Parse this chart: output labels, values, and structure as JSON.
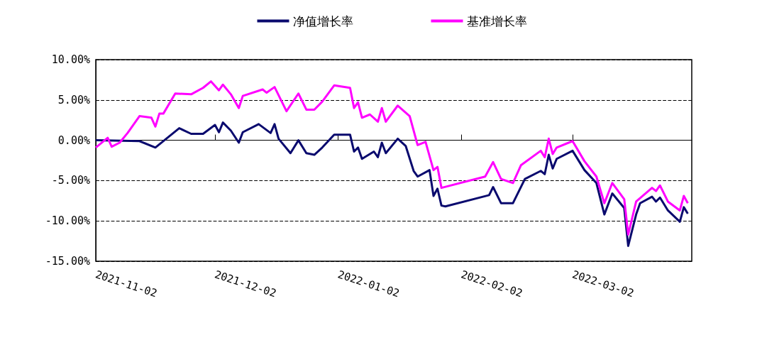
{
  "chart_data": {
    "type": "line",
    "legend": "top",
    "grid": "y",
    "xlim": [
      "2021-11-02",
      "2022-04-01"
    ],
    "xticks": [
      "2021-11-02",
      "2021-12-02",
      "2022-01-02",
      "2022-02-02",
      "2022-03-02"
    ],
    "ylim": [
      -15,
      10
    ],
    "yticks": [
      {
        "value": -15,
        "label": "-15.00%"
      },
      {
        "value": -10,
        "label": "-10.00%"
      },
      {
        "value": -5,
        "label": "-5.00%"
      },
      {
        "value": 0,
        "label": "0.00%"
      },
      {
        "value": 5,
        "label": "5.00%"
      },
      {
        "value": 10,
        "label": "10.00%"
      }
    ],
    "series": [
      {
        "name": "净值增长率",
        "color": "#0a0a6e",
        "x": [
          "2021-11-02",
          "2021-11-13",
          "2021-11-17",
          "2021-11-23",
          "2021-11-26",
          "2021-11-29",
          "2021-12-02",
          "2021-12-03",
          "2021-12-04",
          "2021-12-06",
          "2021-12-08",
          "2021-12-09",
          "2021-12-13",
          "2021-12-16",
          "2021-12-17",
          "2021-12-18",
          "2021-12-21",
          "2021-12-23",
          "2021-12-25",
          "2021-12-27",
          "2021-12-29",
          "2022-01-01",
          "2022-01-05",
          "2022-01-06",
          "2022-01-07",
          "2022-01-08",
          "2022-01-11",
          "2022-01-12",
          "2022-01-13",
          "2022-01-14",
          "2022-01-17",
          "2022-01-19",
          "2022-01-21",
          "2022-01-22",
          "2022-01-25",
          "2022-01-26",
          "2022-01-27",
          "2022-01-28",
          "2022-01-29",
          "2022-02-09",
          "2022-02-10",
          "2022-02-12",
          "2022-02-15",
          "2022-02-18",
          "2022-02-22",
          "2022-02-23",
          "2022-02-24",
          "2022-02-25",
          "2022-02-26",
          "2022-03-02",
          "2022-03-05",
          "2022-03-08",
          "2022-03-10",
          "2022-03-12",
          "2022-03-15",
          "2022-03-16",
          "2022-03-18",
          "2022-03-19",
          "2022-03-22",
          "2022-03-23",
          "2022-03-24",
          "2022-03-26",
          "2022-03-29",
          "2022-03-30",
          "2022-03-31"
        ],
        "values": [
          0,
          -0.1,
          -0.9,
          1.5,
          0.8,
          0.8,
          1.9,
          1.0,
          2.2,
          1.2,
          -0.3,
          1.0,
          2.0,
          0.9,
          2.0,
          0.2,
          -1.6,
          0,
          -1.6,
          -1.8,
          -0.9,
          0.7,
          0.7,
          -1.4,
          -0.9,
          -2.3,
          -1.4,
          -2.1,
          -0.3,
          -1.6,
          0.2,
          -0.7,
          -3.8,
          -4.5,
          -3.7,
          -6.9,
          -6.0,
          -8.1,
          -8.2,
          -6.8,
          -5.8,
          -7.8,
          -7.8,
          -4.8,
          -3.8,
          -4.2,
          -1.8,
          -3.5,
          -2.3,
          -1.3,
          -3.7,
          -5.3,
          -9.2,
          -6.6,
          -8.4,
          -13.1,
          -9.2,
          -7.8,
          -7.0,
          -7.6,
          -7.1,
          -8.7,
          -10.1,
          -8.3,
          -9.1
        ]
      },
      {
        "name": "基准增长率",
        "color": "#ff00ff",
        "x": [
          "2021-11-02",
          "2021-11-05",
          "2021-11-06",
          "2021-11-08",
          "2021-11-10",
          "2021-11-13",
          "2021-11-16",
          "2021-11-17",
          "2021-11-18",
          "2021-11-19",
          "2021-11-22",
          "2021-11-26",
          "2021-11-29",
          "2021-12-01",
          "2021-12-03",
          "2021-12-04",
          "2021-12-06",
          "2021-12-08",
          "2021-12-09",
          "2021-12-14",
          "2021-12-15",
          "2021-12-17",
          "2021-12-20",
          "2021-12-23",
          "2021-12-25",
          "2021-12-27",
          "2021-12-29",
          "2022-01-01",
          "2022-01-05",
          "2022-01-06",
          "2022-01-07",
          "2022-01-08",
          "2022-01-10",
          "2022-01-12",
          "2022-01-13",
          "2022-01-14",
          "2022-01-17",
          "2022-01-20",
          "2022-01-22",
          "2022-01-24",
          "2022-01-26",
          "2022-01-27",
          "2022-01-28",
          "2022-02-08",
          "2022-02-10",
          "2022-02-12",
          "2022-02-15",
          "2022-02-17",
          "2022-02-22",
          "2022-02-23",
          "2022-02-24",
          "2022-02-25",
          "2022-02-26",
          "2022-03-02",
          "2022-03-05",
          "2022-03-08",
          "2022-03-10",
          "2022-03-12",
          "2022-03-15",
          "2022-03-16",
          "2022-03-18",
          "2022-03-22",
          "2022-03-23",
          "2022-03-24",
          "2022-03-26",
          "2022-03-29",
          "2022-03-30",
          "2022-03-31"
        ],
        "values": [
          -0.9,
          0.3,
          -0.8,
          -0.3,
          0.9,
          3.0,
          2.8,
          1.7,
          3.3,
          3.3,
          5.8,
          5.7,
          6.5,
          7.3,
          6.2,
          6.9,
          5.7,
          4.0,
          5.5,
          6.3,
          5.9,
          6.6,
          3.6,
          5.8,
          3.8,
          3.8,
          4.8,
          6.8,
          6.5,
          4.0,
          4.7,
          2.8,
          3.2,
          2.3,
          4.0,
          2.3,
          4.3,
          3.0,
          -0.6,
          -0.2,
          -3.7,
          -3.3,
          -5.9,
          -4.5,
          -2.7,
          -4.8,
          -5.3,
          -3.1,
          -1.3,
          -2.1,
          0.2,
          -1.7,
          -0.9,
          -0.1,
          -2.6,
          -4.5,
          -7.8,
          -5.3,
          -7.3,
          -11.7,
          -7.6,
          -5.9,
          -6.3,
          -5.6,
          -7.6,
          -8.7,
          -6.9,
          -7.8
        ]
      }
    ]
  }
}
